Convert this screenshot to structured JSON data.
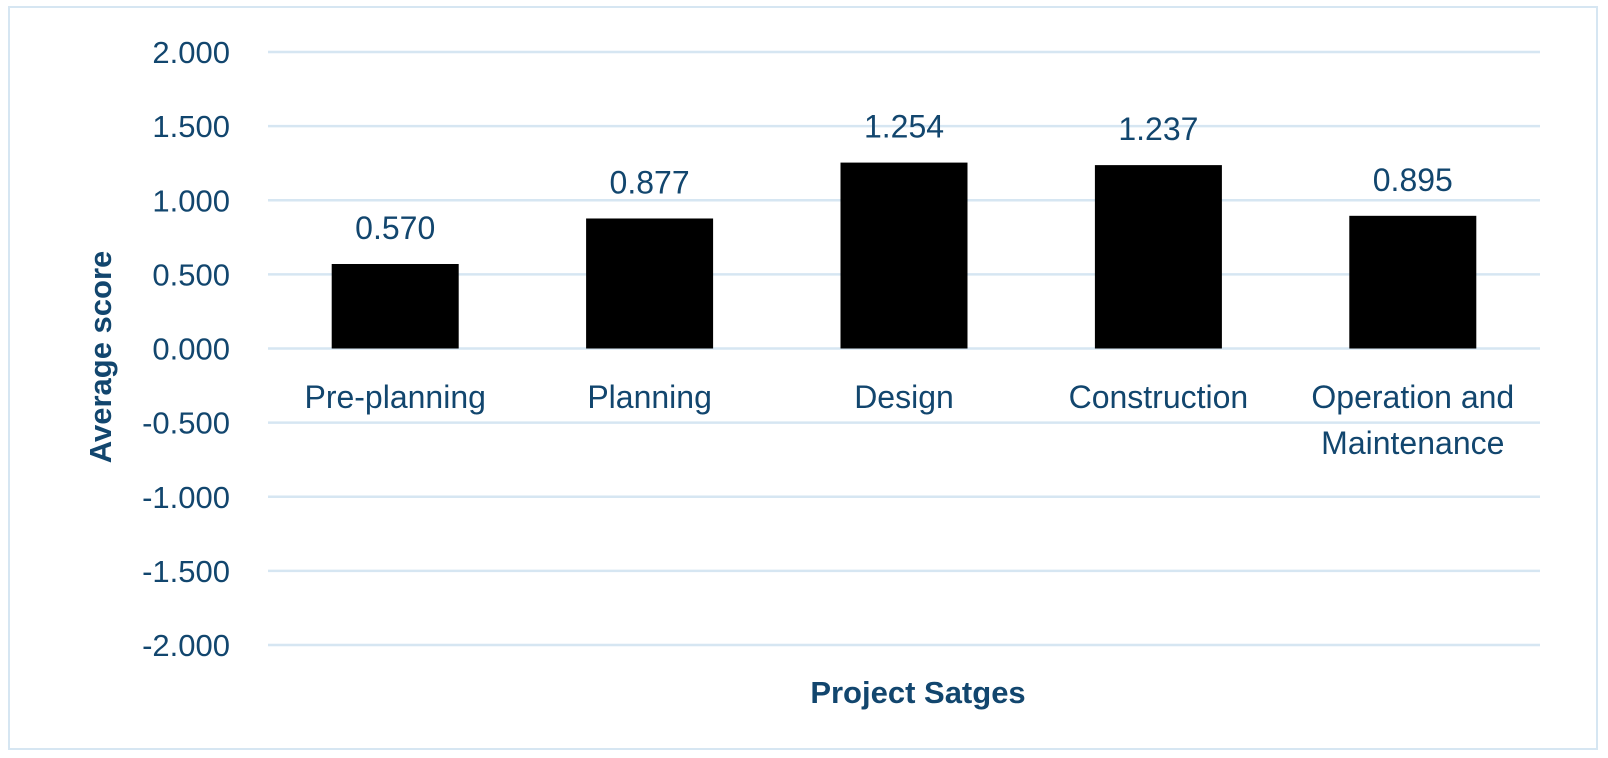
{
  "chart_data": {
    "type": "bar",
    "title": "",
    "xlabel": "Project Satges",
    "ylabel": "Average score",
    "categories": [
      "Pre-planning",
      "Planning",
      "Design",
      "Construction",
      "Operation and Maintenance"
    ],
    "values": [
      0.57,
      0.877,
      1.254,
      1.237,
      0.895
    ],
    "data_labels": [
      "0.570",
      "0.877",
      "1.254",
      "1.237",
      "0.895"
    ],
    "ylim": [
      -2,
      2
    ],
    "yticks": [
      2,
      1.5,
      1,
      0.5,
      0,
      -0.5,
      -1,
      -1.5,
      -2
    ],
    "ytick_labels": [
      "2.000",
      "1.500",
      "1.000",
      "0.500",
      "0.000",
      "-0.500",
      "-1.000",
      "-1.500",
      "-2.000"
    ],
    "grid": true,
    "legend": "none",
    "colors": {
      "bar": "#000000",
      "gridline": "#d6e6f2",
      "text": "#12466e",
      "frame_border": "#d6e6f2"
    }
  }
}
